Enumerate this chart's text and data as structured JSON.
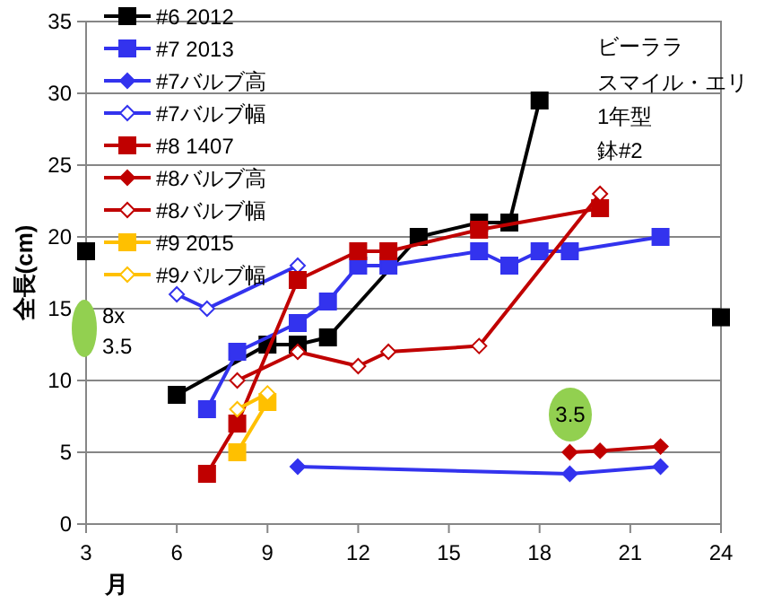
{
  "chart_data": {
    "type": "line",
    "xlabel": "月",
    "ylabel": "全長(cm)",
    "xlim": [
      3,
      24
    ],
    "xticks": [
      3,
      6,
      9,
      12,
      15,
      18,
      21,
      24
    ],
    "ylim": [
      0,
      35
    ],
    "yticks": [
      0,
      5,
      10,
      15,
      20,
      25,
      30,
      35
    ],
    "grid": "y",
    "legend": "top left",
    "line_style": "solid",
    "annotations": [
      "ビーララ",
      "スマイル・エリ",
      "1年型",
      "鉢#2",
      "8x",
      "3.5",
      "3.5"
    ],
    "series": [
      {
        "name": "#6 2012",
        "color": "#000000",
        "marker": "square",
        "x": [
          6,
          9,
          10,
          11,
          14,
          16,
          17,
          18
        ],
        "values": [
          9,
          12.5,
          12.5,
          13,
          20,
          21,
          21,
          29.5
        ]
      },
      {
        "name": "#7 2013",
        "color": "#3333ee",
        "marker": "square",
        "x": [
          7,
          8,
          10,
          11,
          12,
          13,
          16,
          17,
          18,
          19,
          22
        ],
        "values": [
          8,
          12,
          14,
          15.5,
          18,
          18,
          19,
          18,
          19,
          19,
          20
        ]
      },
      {
        "name": "#7バルブ高",
        "color": "#3333ee",
        "marker": "diamond",
        "x": [
          10,
          19,
          22
        ],
        "values": [
          4,
          3.5,
          4
        ]
      },
      {
        "name": "#7バルブ幅",
        "color": "#3333ee",
        "marker": "diamond-open",
        "x": [
          6,
          7,
          10
        ],
        "values": [
          16,
          15,
          18
        ]
      },
      {
        "name": "#8 1407",
        "color": "#c00000",
        "marker": "square",
        "x": [
          7,
          8,
          10,
          12,
          13,
          16,
          20
        ],
        "values": [
          3.5,
          7,
          17,
          19,
          19,
          20.5,
          22
        ]
      },
      {
        "name": "#8バルブ高",
        "color": "#c00000",
        "marker": "diamond",
        "x": [
          19,
          20,
          22
        ],
        "values": [
          5,
          5.1,
          5.4
        ]
      },
      {
        "name": "#8バルブ幅",
        "color": "#c00000",
        "marker": "diamond-open",
        "x": [
          8,
          10,
          12,
          13,
          16,
          20
        ],
        "values": [
          10,
          12,
          11,
          12,
          12.4,
          23
        ]
      },
      {
        "name": "#9 2015",
        "color": "#ffc000",
        "marker": "square",
        "x": [
          8,
          9
        ],
        "values": [
          5,
          8.5
        ]
      },
      {
        "name": "#9バルブ幅",
        "color": "#ffc000",
        "marker": "diamond-open",
        "x": [
          8,
          9
        ],
        "values": [
          8,
          9.1
        ]
      },
      {
        "type": "scatter",
        "color": "#000000",
        "marker": "square",
        "x": [
          3,
          24
        ],
        "values": [
          19,
          14.4
        ]
      }
    ]
  }
}
